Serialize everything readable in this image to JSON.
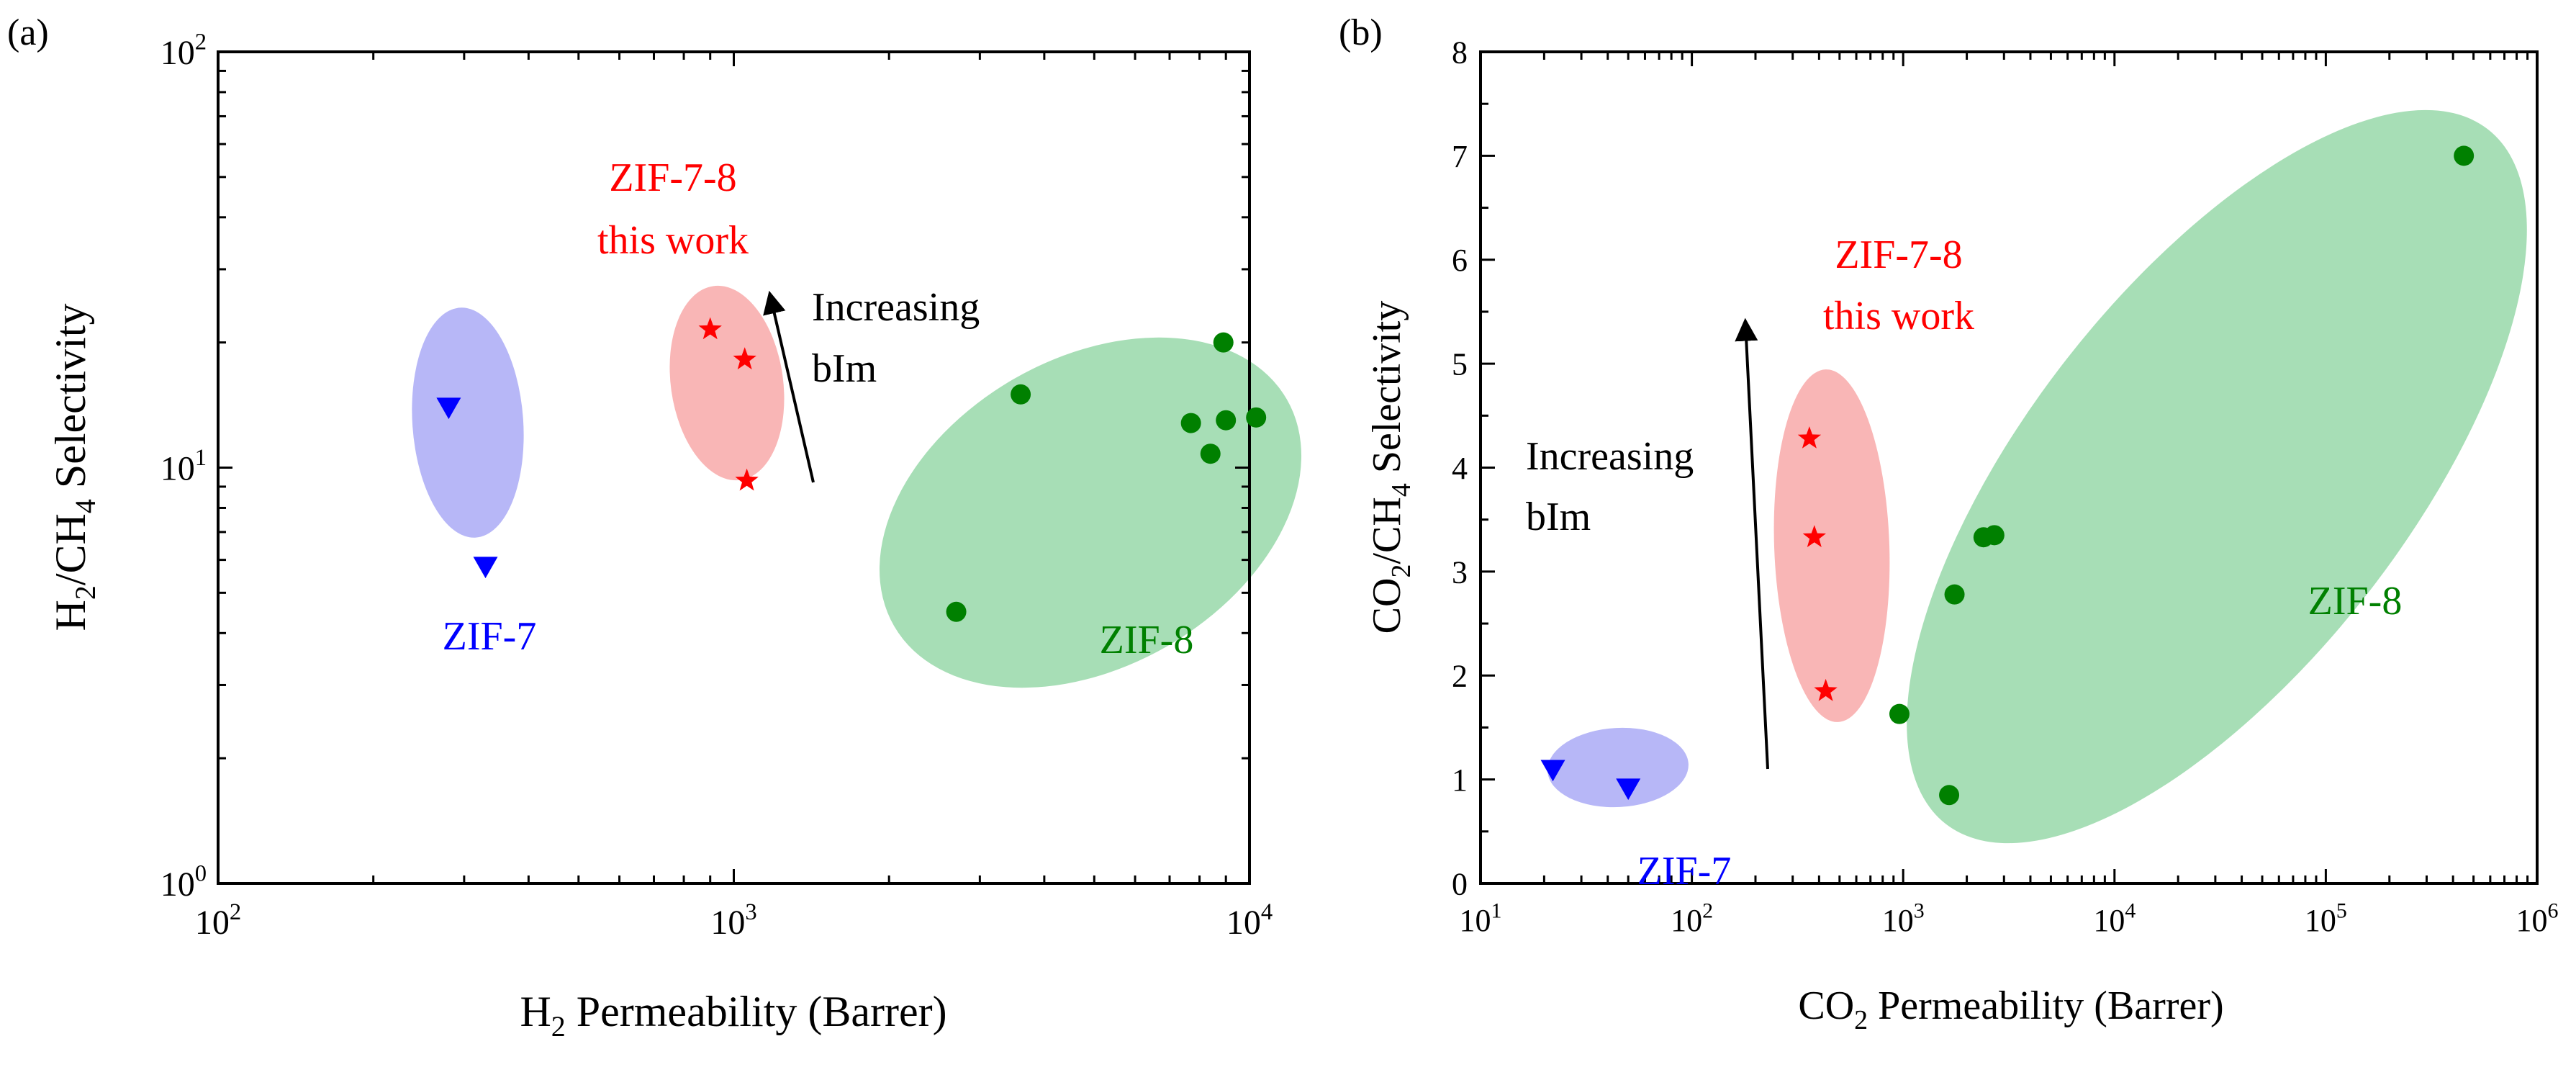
{
  "chart_data": [
    {
      "panel_label": "(a)",
      "type": "scatter",
      "x_scale": "log",
      "y_scale": "log",
      "xlim": [
        100,
        10000
      ],
      "ylim": [
        1,
        100
      ],
      "x_ticks": [
        {
          "value": 100,
          "base": "10",
          "exp": "2"
        },
        {
          "value": 1000,
          "base": "10",
          "exp": "3"
        },
        {
          "value": 10000,
          "base": "10",
          "exp": "4"
        }
      ],
      "y_ticks": [
        {
          "value": 1,
          "base": "10",
          "exp": "0"
        },
        {
          "value": 10,
          "base": "10",
          "exp": "1"
        },
        {
          "value": 100,
          "base": "10",
          "exp": "2"
        }
      ],
      "xlabel": {
        "sub_main": "H",
        "sub": "2",
        "rest": " Permeability (Barrer)"
      },
      "ylabel": {
        "a": "H",
        "a_sub": "2",
        "b": "/CH",
        "b_sub": "4",
        "c": " Selectivity"
      },
      "series": [
        {
          "name": "ZIF-7",
          "marker": "triangle-down",
          "color": "#0000ff",
          "points": [
            {
              "x": 280,
              "y": 14
            },
            {
              "x": 330,
              "y": 5.8
            }
          ]
        },
        {
          "name": "ZIF-7-8 this work",
          "marker": "star",
          "color": "#ff0000",
          "points": [
            {
              "x": 900,
              "y": 21.5
            },
            {
              "x": 1050,
              "y": 18.2
            },
            {
              "x": 1060,
              "y": 9.3
            }
          ]
        },
        {
          "name": "ZIF-8",
          "marker": "circle",
          "color": "#008000",
          "points": [
            {
              "x": 2700,
              "y": 4.5
            },
            {
              "x": 3600,
              "y": 15
            },
            {
              "x": 7700,
              "y": 12.8
            },
            {
              "x": 8400,
              "y": 10.8
            },
            {
              "x": 8900,
              "y": 20
            },
            {
              "x": 9000,
              "y": 13
            },
            {
              "x": 10300,
              "y": 13.2
            }
          ]
        }
      ],
      "regions": [
        {
          "name": "ZIF-7",
          "fill": "#7b7bf0",
          "cx": 310,
          "cy": 9.4
        },
        {
          "name": "ZIF-7-8",
          "fill": "#f47a7a",
          "cx": 970,
          "cy": 14.5
        },
        {
          "name": "ZIF-8",
          "fill": "#5fc27a",
          "cx": 5300,
          "cy": 8.9
        }
      ],
      "annotations": {
        "zif7": "ZIF-7",
        "zif78_line1": "ZIF-7-8",
        "zif78_line2": "this work",
        "zif8": "ZIF-8",
        "arrow_line1": "Increasing",
        "arrow_line2": "bIm"
      }
    },
    {
      "panel_label": "(b)",
      "type": "scatter",
      "x_scale": "log",
      "y_scale": "linear",
      "xlim": [
        10,
        1000000
      ],
      "ylim": [
        0,
        8
      ],
      "x_ticks": [
        {
          "value": 10,
          "base": "10",
          "exp": "1"
        },
        {
          "value": 100,
          "base": "10",
          "exp": "2"
        },
        {
          "value": 1000,
          "base": "10",
          "exp": "3"
        },
        {
          "value": 10000,
          "base": "10",
          "exp": "4"
        },
        {
          "value": 100000,
          "base": "10",
          "exp": "5"
        },
        {
          "value": 1000000,
          "base": "10",
          "exp": "6"
        }
      ],
      "y_ticks": [
        "0",
        "1",
        "2",
        "3",
        "4",
        "5",
        "6",
        "7",
        "8"
      ],
      "xlabel": {
        "sub_main": "CO",
        "sub": "2",
        "rest": " Permeability (Barrer)"
      },
      "ylabel": {
        "a": "CO",
        "a_sub": "2",
        "b": "/CH",
        "b_sub": "4",
        "c": " Selectivity"
      },
      "series": [
        {
          "name": "ZIF-7",
          "marker": "triangle-down",
          "color": "#0000ff",
          "points": [
            {
              "x": 22,
              "y": 1.1
            },
            {
              "x": 50,
              "y": 0.92
            }
          ]
        },
        {
          "name": "ZIF-7-8 this work",
          "marker": "star",
          "color": "#ff0000",
          "points": [
            {
              "x": 360,
              "y": 4.28
            },
            {
              "x": 380,
              "y": 3.33
            },
            {
              "x": 430,
              "y": 1.85
            }
          ]
        },
        {
          "name": "ZIF-8",
          "marker": "circle",
          "color": "#008000",
          "points": [
            {
              "x": 960,
              "y": 1.63
            },
            {
              "x": 1650,
              "y": 0.85
            },
            {
              "x": 1750,
              "y": 2.78
            },
            {
              "x": 2400,
              "y": 3.33
            },
            {
              "x": 2700,
              "y": 3.35
            },
            {
              "x": 450000,
              "y": 7.0
            }
          ]
        }
      ],
      "regions": [
        {
          "name": "ZIF-7",
          "fill": "#7b7bf0",
          "cx": 33,
          "cy": 1.0
        },
        {
          "name": "ZIF-7-8",
          "fill": "#f47a7a",
          "cx": 390,
          "cy": 3.3
        },
        {
          "name": "ZIF-8",
          "fill": "#5fc27a",
          "cx": 40000,
          "cy": 3.7
        }
      ],
      "annotations": {
        "zif7": "ZIF-7",
        "zif78_line1": "ZIF-7-8",
        "zif78_line2": "this work",
        "zif8": "ZIF-8",
        "arrow_line1": "Increasing",
        "arrow_line2": "bIm"
      }
    }
  ]
}
